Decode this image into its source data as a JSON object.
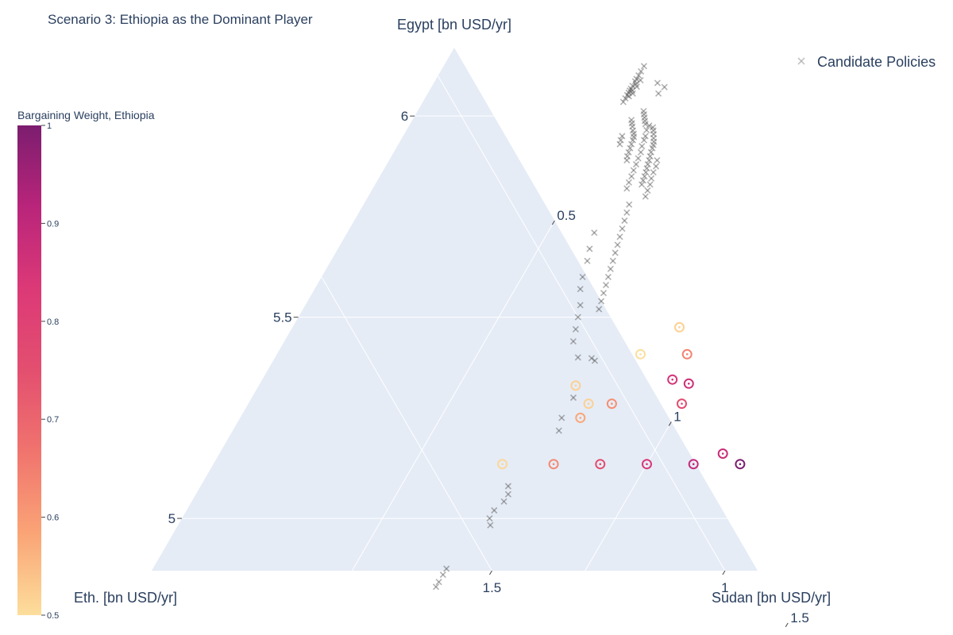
{
  "chart_data": {
    "type": "scatter",
    "subtype": "ternary",
    "title": "Scenario 3: Ethiopia as the Dominant Player",
    "axes": {
      "a": {
        "title": "Egypt [bn USD/yr]",
        "ticks": [
          5,
          5.5,
          6
        ],
        "tick_labels": [
          "5",
          "5.5",
          "6"
        ],
        "range": [
          4.87,
          6.17
        ]
      },
      "b": {
        "title": "Eth. [bn USD/yr]",
        "ticks": [
          1,
          1.5
        ],
        "tick_labels": [
          "1",
          "1.5"
        ],
        "range": [
          0.93,
          2.03
        ]
      },
      "c": {
        "title": "Sudan [bn USD/yr]",
        "ticks": [
          0.5,
          1,
          1.5
        ],
        "tick_labels": [
          "0.5",
          "1",
          "1.5"
        ],
        "range": [
          0.07,
          1.73
        ]
      }
    },
    "background_color": "#e5ecf6",
    "grid": true,
    "colorbar": {
      "title": "Bargaining Weight, Ethiopia",
      "range": [
        0.5,
        1
      ],
      "ticks": [
        0.5,
        0.6,
        0.7,
        0.8,
        0.9,
        1
      ],
      "tick_labels": [
        "0.5",
        "0.6",
        "0.7",
        "0.8",
        "0.9",
        "1"
      ],
      "colorscale": [
        "#fcde9c",
        "#faa476",
        "#f0746e",
        "#e34f6f",
        "#dc3977",
        "#b9257a",
        "#7c1d6f"
      ]
    },
    "legend": {
      "placement": "top-right",
      "entries": [
        "Candidate Policies"
      ]
    },
    "series": [
      {
        "name": "Candidate Policies",
        "marker": "x",
        "color": "#8a8a8a",
        "points": [
          {
            "egypt": 6.124,
            "sudan": 0.5
          },
          {
            "egypt": 6.111,
            "sudan": 0.5
          },
          {
            "egypt": 6.101,
            "sudan": 0.5
          },
          {
            "egypt": 6.092,
            "sudan": 0.5
          },
          {
            "egypt": 6.086,
            "sudan": 0.5
          },
          {
            "egypt": 6.075,
            "sudan": 0.5
          },
          {
            "egypt": 6.068,
            "sudan": 0.5
          },
          {
            "egypt": 6.063,
            "sudan": 0.5
          },
          {
            "egypt": 6.058,
            "sudan": 0.5
          },
          {
            "egypt": 6.052,
            "sudan": 0.5
          },
          {
            "egypt": 6.044,
            "sudan": 0.5
          },
          {
            "egypt": 6.035,
            "sudan": 0.5
          },
          {
            "egypt": 6.079,
            "sudan": 0.505
          },
          {
            "egypt": 6.063,
            "sudan": 0.505
          },
          {
            "egypt": 6.049,
            "sudan": 0.505
          },
          {
            "egypt": 6.089,
            "sudan": 0.51
          },
          {
            "egypt": 6.073,
            "sudan": 0.51
          },
          {
            "egypt": 6.056,
            "sudan": 0.51
          },
          {
            "egypt": 6.082,
            "sudan": 0.55
          },
          {
            "egypt": 6.072,
            "sudan": 0.57
          },
          {
            "egypt": 6.056,
            "sudan": 0.565
          },
          {
            "egypt": 6.012,
            "sudan": 0.555
          },
          {
            "egypt": 6.004,
            "sudan": 0.56
          },
          {
            "egypt": 5.996,
            "sudan": 0.565
          },
          {
            "egypt": 5.988,
            "sudan": 0.57
          },
          {
            "egypt": 5.98,
            "sudan": 0.575
          },
          {
            "egypt": 5.976,
            "sudan": 0.585
          },
          {
            "egypt": 5.972,
            "sudan": 0.595
          },
          {
            "egypt": 5.964,
            "sudan": 0.6
          },
          {
            "egypt": 5.955,
            "sudan": 0.605
          },
          {
            "egypt": 5.945,
            "sudan": 0.61
          },
          {
            "egypt": 5.936,
            "sudan": 0.615
          },
          {
            "egypt": 5.928,
            "sudan": 0.618
          },
          {
            "egypt": 5.92,
            "sudan": 0.62
          },
          {
            "egypt": 5.91,
            "sudan": 0.622
          },
          {
            "egypt": 5.9,
            "sudan": 0.625
          },
          {
            "egypt": 5.89,
            "sudan": 0.628
          },
          {
            "egypt": 5.88,
            "sudan": 0.63
          },
          {
            "egypt": 5.87,
            "sudan": 0.633
          },
          {
            "egypt": 5.86,
            "sudan": 0.636
          },
          {
            "egypt": 5.85,
            "sudan": 0.638
          },
          {
            "egypt": 5.84,
            "sudan": 0.64
          },
          {
            "egypt": 5.83,
            "sudan": 0.642
          },
          {
            "egypt": 5.99,
            "sudan": 0.54
          },
          {
            "egypt": 5.982,
            "sudan": 0.545
          },
          {
            "egypt": 5.974,
            "sudan": 0.55
          },
          {
            "egypt": 5.964,
            "sudan": 0.556
          },
          {
            "egypt": 5.956,
            "sudan": 0.562
          },
          {
            "egypt": 5.948,
            "sudan": 0.566
          },
          {
            "egypt": 5.94,
            "sudan": 0.568
          },
          {
            "egypt": 5.93,
            "sudan": 0.57
          },
          {
            "egypt": 5.92,
            "sudan": 0.572
          },
          {
            "egypt": 5.91,
            "sudan": 0.574
          },
          {
            "egypt": 5.9,
            "sudan": 0.576
          },
          {
            "egypt": 5.89,
            "sudan": 0.58
          },
          {
            "egypt": 5.95,
            "sudan": 0.54
          },
          {
            "egypt": 5.94,
            "sudan": 0.542
          },
          {
            "egypt": 5.93,
            "sudan": 0.545
          },
          {
            "egypt": 5.965,
            "sudan": 0.585
          },
          {
            "egypt": 5.95,
            "sudan": 0.59
          },
          {
            "egypt": 5.94,
            "sudan": 0.592
          },
          {
            "egypt": 5.925,
            "sudan": 0.595
          },
          {
            "egypt": 5.91,
            "sudan": 0.6
          },
          {
            "egypt": 5.895,
            "sudan": 0.602
          },
          {
            "egypt": 5.88,
            "sudan": 0.605
          },
          {
            "egypt": 5.865,
            "sudan": 0.607
          },
          {
            "egypt": 5.85,
            "sudan": 0.61
          },
          {
            "egypt": 5.835,
            "sudan": 0.612
          },
          {
            "egypt": 5.82,
            "sudan": 0.615
          },
          {
            "egypt": 5.89,
            "sudan": 0.645
          },
          {
            "egypt": 5.875,
            "sudan": 0.65
          },
          {
            "egypt": 5.86,
            "sudan": 0.652
          },
          {
            "egypt": 5.845,
            "sudan": 0.655
          },
          {
            "egypt": 5.83,
            "sudan": 0.66
          },
          {
            "egypt": 5.815,
            "sudan": 0.662
          },
          {
            "egypt": 5.8,
            "sudan": 0.665
          },
          {
            "egypt": 5.78,
            "sudan": 0.64
          },
          {
            "egypt": 5.76,
            "sudan": 0.645
          },
          {
            "egypt": 5.74,
            "sudan": 0.65
          },
          {
            "egypt": 5.72,
            "sudan": 0.655
          },
          {
            "egypt": 5.7,
            "sudan": 0.66
          },
          {
            "egypt": 5.68,
            "sudan": 0.665
          },
          {
            "egypt": 5.66,
            "sudan": 0.67
          },
          {
            "egypt": 5.64,
            "sudan": 0.675
          },
          {
            "egypt": 5.62,
            "sudan": 0.68
          },
          {
            "egypt": 5.6,
            "sudan": 0.685
          },
          {
            "egypt": 5.58,
            "sudan": 0.69
          },
          {
            "egypt": 5.56,
            "sudan": 0.695
          },
          {
            "egypt": 5.54,
            "sudan": 0.7
          },
          {
            "egypt": 5.52,
            "sudan": 0.705
          },
          {
            "egypt": 5.71,
            "sudan": 0.6
          },
          {
            "egypt": 5.67,
            "sudan": 0.61
          },
          {
            "egypt": 5.64,
            "sudan": 0.62
          },
          {
            "egypt": 5.6,
            "sudan": 0.63
          },
          {
            "egypt": 5.57,
            "sudan": 0.64
          },
          {
            "egypt": 5.53,
            "sudan": 0.66
          },
          {
            "egypt": 5.5,
            "sudan": 0.67
          },
          {
            "egypt": 5.47,
            "sudan": 0.68
          },
          {
            "egypt": 5.44,
            "sudan": 0.69
          },
          {
            "egypt": 5.4,
            "sudan": 0.72
          },
          {
            "egypt": 5.398,
            "sudan": 0.75
          },
          {
            "egypt": 5.392,
            "sudan": 0.76
          },
          {
            "egypt": 5.3,
            "sudan": 0.76
          },
          {
            "egypt": 5.25,
            "sudan": 0.76
          },
          {
            "egypt": 5.218,
            "sudan": 0.77
          },
          {
            "egypt": 5.08,
            "sudan": 0.73
          },
          {
            "egypt": 5.06,
            "sudan": 0.74
          },
          {
            "egypt": 5.042,
            "sudan": 0.74
          },
          {
            "egypt": 5.02,
            "sudan": 0.73
          },
          {
            "egypt": 5.0,
            "sudan": 0.73
          },
          {
            "egypt": 4.983,
            "sudan": 0.74
          },
          {
            "egypt": 4.875,
            "sudan": 0.7
          },
          {
            "egypt": 4.86,
            "sudan": 0.7
          },
          {
            "egypt": 4.842,
            "sudan": 0.7
          },
          {
            "egypt": 4.83,
            "sudan": 0.7
          }
        ]
      },
      {
        "name": "",
        "marker": "circle-dot",
        "color_by": "bargaining_weight_ethiopia",
        "points": [
          {
            "egypt": 5.475,
            "sudan": 0.9,
            "weight": 0.52
          },
          {
            "egypt": 5.408,
            "sudan": 0.85,
            "weight": 0.5
          },
          {
            "egypt": 5.408,
            "sudan": 0.95,
            "weight": 0.64
          },
          {
            "egypt": 5.33,
            "sudan": 0.75,
            "weight": 0.52
          },
          {
            "egypt": 5.345,
            "sudan": 0.95,
            "weight": 0.85
          },
          {
            "egypt": 5.335,
            "sudan": 0.99,
            "weight": 0.87
          },
          {
            "egypt": 5.285,
            "sudan": 0.8,
            "weight": 0.52
          },
          {
            "egypt": 5.285,
            "sudan": 0.85,
            "weight": 0.62
          },
          {
            "egypt": 5.285,
            "sudan": 1.0,
            "weight": 0.76
          },
          {
            "egypt": 5.25,
            "sudan": 0.8,
            "weight": 0.58
          },
          {
            "egypt": 5.161,
            "sudan": 1.15,
            "weight": 0.88
          },
          {
            "egypt": 5.135,
            "sudan": 0.69,
            "weight": 0.51
          },
          {
            "egypt": 5.135,
            "sudan": 0.8,
            "weight": 0.63
          },
          {
            "egypt": 5.135,
            "sudan": 0.9,
            "weight": 0.76
          },
          {
            "egypt": 5.135,
            "sudan": 1.0,
            "weight": 0.84
          },
          {
            "egypt": 5.135,
            "sudan": 1.1,
            "weight": 0.89
          },
          {
            "egypt": 5.135,
            "sudan": 1.2,
            "weight": 1.0
          }
        ]
      }
    ]
  }
}
